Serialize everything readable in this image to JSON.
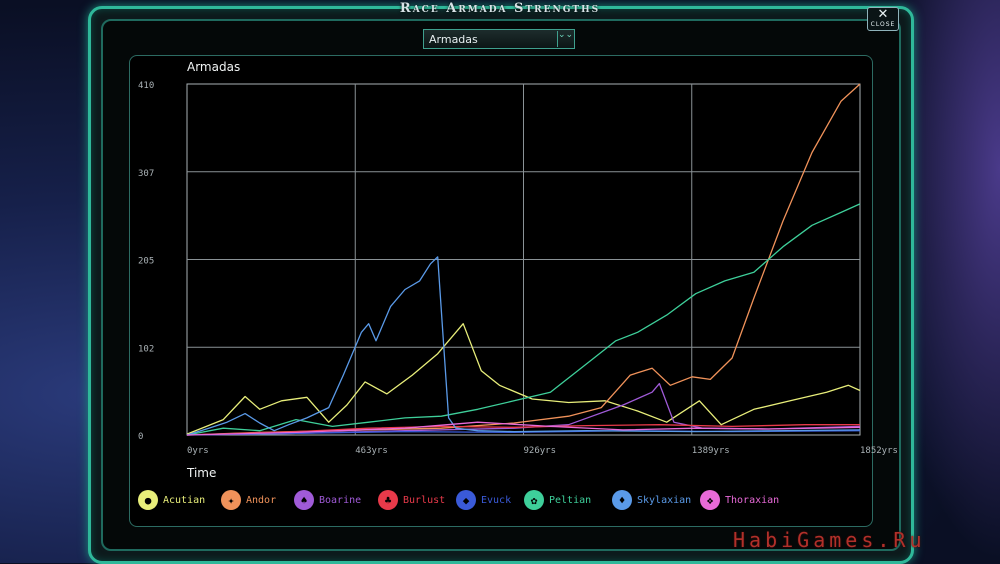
{
  "window": {
    "title": "Race Armada Strengths",
    "close_label": "CLOSE",
    "close_glyph": "✕"
  },
  "dropdown": {
    "selected": "Armadas",
    "arrow": "⌄⌄"
  },
  "panel": {
    "title": "Armadas",
    "x_axis_title": "Time"
  },
  "watermark": "HabiGames.Ru",
  "colors": {
    "frame": "#2fb89a",
    "grid": "#9aa2a6",
    "accent": "#6fd9c0"
  },
  "chart_data": {
    "type": "line",
    "title": "Armadas",
    "xlabel": "Time",
    "ylabel": "",
    "x_ticks": [
      "0yrs",
      "463yrs",
      "926yrs",
      "1389yrs",
      "1852yrs"
    ],
    "y_ticks": [
      "0",
      "102",
      "205",
      "307",
      "410"
    ],
    "xlim": [
      0,
      1852
    ],
    "ylim": [
      0,
      410
    ],
    "grid": true,
    "legend_position": "bottom",
    "series": [
      {
        "name": "Acutian",
        "color": "#e8ee7a",
        "icon": "acutian-icon",
        "points": [
          [
            0,
            1
          ],
          [
            100,
            18
          ],
          [
            160,
            45
          ],
          [
            200,
            30
          ],
          [
            260,
            40
          ],
          [
            330,
            44
          ],
          [
            390,
            15
          ],
          [
            440,
            35
          ],
          [
            490,
            62
          ],
          [
            550,
            48
          ],
          [
            620,
            70
          ],
          [
            690,
            95
          ],
          [
            760,
            130
          ],
          [
            810,
            75
          ],
          [
            860,
            58
          ],
          [
            950,
            42
          ],
          [
            1050,
            38
          ],
          [
            1150,
            40
          ],
          [
            1240,
            28
          ],
          [
            1320,
            15
          ],
          [
            1410,
            40
          ],
          [
            1470,
            12
          ],
          [
            1560,
            30
          ],
          [
            1660,
            40
          ],
          [
            1760,
            50
          ],
          [
            1820,
            58
          ],
          [
            1852,
            52
          ]
        ]
      },
      {
        "name": "Andor",
        "color": "#f0925a",
        "icon": "andor-icon",
        "points": [
          [
            0,
            0
          ],
          [
            200,
            3
          ],
          [
            400,
            5
          ],
          [
            700,
            8
          ],
          [
            900,
            14
          ],
          [
            1050,
            22
          ],
          [
            1140,
            32
          ],
          [
            1220,
            70
          ],
          [
            1280,
            78
          ],
          [
            1330,
            58
          ],
          [
            1390,
            68
          ],
          [
            1440,
            65
          ],
          [
            1500,
            90
          ],
          [
            1560,
            160
          ],
          [
            1640,
            250
          ],
          [
            1720,
            330
          ],
          [
            1800,
            390
          ],
          [
            1852,
            410
          ]
        ]
      },
      {
        "name": "Boarine",
        "color": "#a05bd8",
        "icon": "boarine-icon",
        "points": [
          [
            0,
            0
          ],
          [
            300,
            2
          ],
          [
            600,
            5
          ],
          [
            900,
            8
          ],
          [
            1050,
            12
          ],
          [
            1200,
            35
          ],
          [
            1280,
            50
          ],
          [
            1300,
            60
          ],
          [
            1340,
            15
          ],
          [
            1420,
            8
          ],
          [
            1600,
            7
          ],
          [
            1852,
            10
          ]
        ]
      },
      {
        "name": "Burlust",
        "color": "#e83a4a",
        "icon": "burlust-icon",
        "points": [
          [
            0,
            0
          ],
          [
            300,
            4
          ],
          [
            500,
            8
          ],
          [
            700,
            10
          ],
          [
            900,
            9
          ],
          [
            1100,
            11
          ],
          [
            1300,
            12
          ],
          [
            1500,
            10
          ],
          [
            1700,
            12
          ],
          [
            1852,
            12
          ]
        ]
      },
      {
        "name": "Evuck",
        "color": "#3a5ad8",
        "icon": "evuck-icon",
        "points": [
          [
            0,
            0
          ],
          [
            300,
            2
          ],
          [
            600,
            4
          ],
          [
            900,
            3
          ],
          [
            1200,
            5
          ],
          [
            1500,
            4
          ],
          [
            1852,
            5
          ]
        ]
      },
      {
        "name": "Peltian",
        "color": "#3ecf9a",
        "icon": "peltian-icon",
        "points": [
          [
            0,
            0
          ],
          [
            100,
            8
          ],
          [
            200,
            5
          ],
          [
            300,
            18
          ],
          [
            400,
            10
          ],
          [
            500,
            15
          ],
          [
            600,
            20
          ],
          [
            700,
            22
          ],
          [
            800,
            30
          ],
          [
            900,
            40
          ],
          [
            1000,
            50
          ],
          [
            1060,
            70
          ],
          [
            1120,
            90
          ],
          [
            1180,
            110
          ],
          [
            1240,
            120
          ],
          [
            1320,
            140
          ],
          [
            1400,
            165
          ],
          [
            1480,
            180
          ],
          [
            1560,
            190
          ],
          [
            1640,
            220
          ],
          [
            1720,
            245
          ],
          [
            1800,
            260
          ],
          [
            1852,
            270
          ]
        ]
      },
      {
        "name": "Skylaxian",
        "color": "#5a9ae8",
        "icon": "skylaxian-icon",
        "points": [
          [
            0,
            0
          ],
          [
            60,
            8
          ],
          [
            110,
            15
          ],
          [
            160,
            25
          ],
          [
            200,
            14
          ],
          [
            240,
            5
          ],
          [
            280,
            12
          ],
          [
            330,
            20
          ],
          [
            390,
            32
          ],
          [
            430,
            70
          ],
          [
            460,
            100
          ],
          [
            480,
            120
          ],
          [
            500,
            130
          ],
          [
            520,
            110
          ],
          [
            560,
            150
          ],
          [
            600,
            170
          ],
          [
            640,
            180
          ],
          [
            670,
            200
          ],
          [
            690,
            208
          ],
          [
            720,
            20
          ],
          [
            740,
            8
          ],
          [
            800,
            5
          ],
          [
            900,
            4
          ],
          [
            1100,
            5
          ],
          [
            1400,
            4
          ],
          [
            1852,
            6
          ]
        ]
      },
      {
        "name": "Thoraxian",
        "color": "#e86ad8",
        "icon": "thoraxian-icon",
        "points": [
          [
            0,
            0
          ],
          [
            300,
            3
          ],
          [
            600,
            8
          ],
          [
            800,
            15
          ],
          [
            1000,
            10
          ],
          [
            1200,
            6
          ],
          [
            1400,
            8
          ],
          [
            1600,
            7
          ],
          [
            1852,
            9
          ]
        ]
      }
    ]
  }
}
